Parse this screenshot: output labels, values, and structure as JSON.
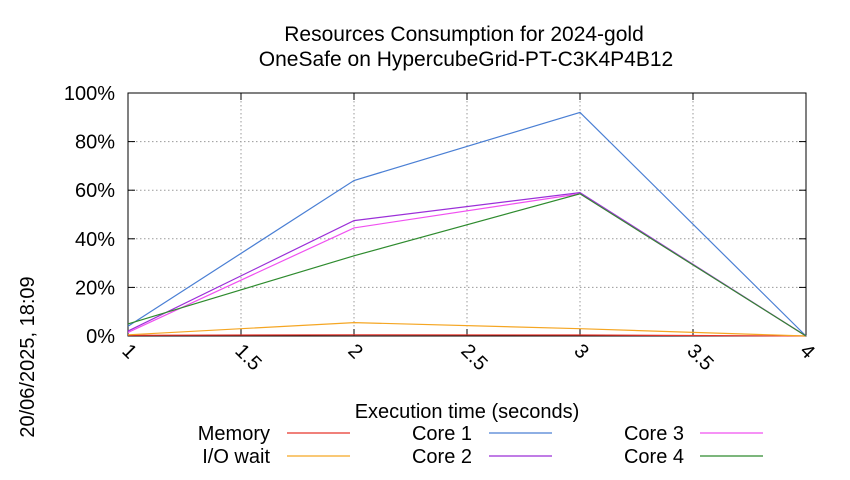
{
  "side_label": "20/06/2025, 18:09",
  "chart_data": {
    "type": "line",
    "title": "Resources Consumption for 2024-gold",
    "subtitle": "OneSafe on HypercubeGrid-PT-C3K4P4B12",
    "xlabel": "Execution time (seconds)",
    "ylabel": "",
    "xlim": [
      1,
      4
    ],
    "ylim": [
      0,
      100
    ],
    "x_ticks": [
      1,
      1.5,
      2,
      2.5,
      3,
      3.5,
      4
    ],
    "x_tick_labels": [
      "1",
      "1.5",
      "2",
      "2.5",
      "3",
      "3.5",
      "4"
    ],
    "y_ticks": [
      0,
      20,
      40,
      60,
      80,
      100
    ],
    "y_tick_labels": [
      "0%",
      "20%",
      "40%",
      "60%",
      "80%",
      "100%"
    ],
    "grid": true,
    "legend_position": "bottom",
    "x": [
      1,
      2,
      3,
      4
    ],
    "series": [
      {
        "name": "Memory",
        "color": "#e8352b",
        "values": [
          0.3,
          0.5,
          0.4,
          0
        ]
      },
      {
        "name": "I/O wait",
        "color": "#f5a623",
        "values": [
          0.5,
          5.5,
          3,
          0
        ]
      },
      {
        "name": "Core 1",
        "color": "#4a7fd4",
        "values": [
          4,
          64,
          92,
          0
        ]
      },
      {
        "name": "Core 2",
        "color": "#9b2fd8",
        "values": [
          2,
          47.5,
          59,
          0
        ]
      },
      {
        "name": "Core 3",
        "color": "#f050f0",
        "values": [
          1.5,
          44.5,
          58.5,
          0
        ]
      },
      {
        "name": "Core 4",
        "color": "#2e8b2e",
        "values": [
          5,
          33,
          58.5,
          0
        ]
      }
    ]
  }
}
